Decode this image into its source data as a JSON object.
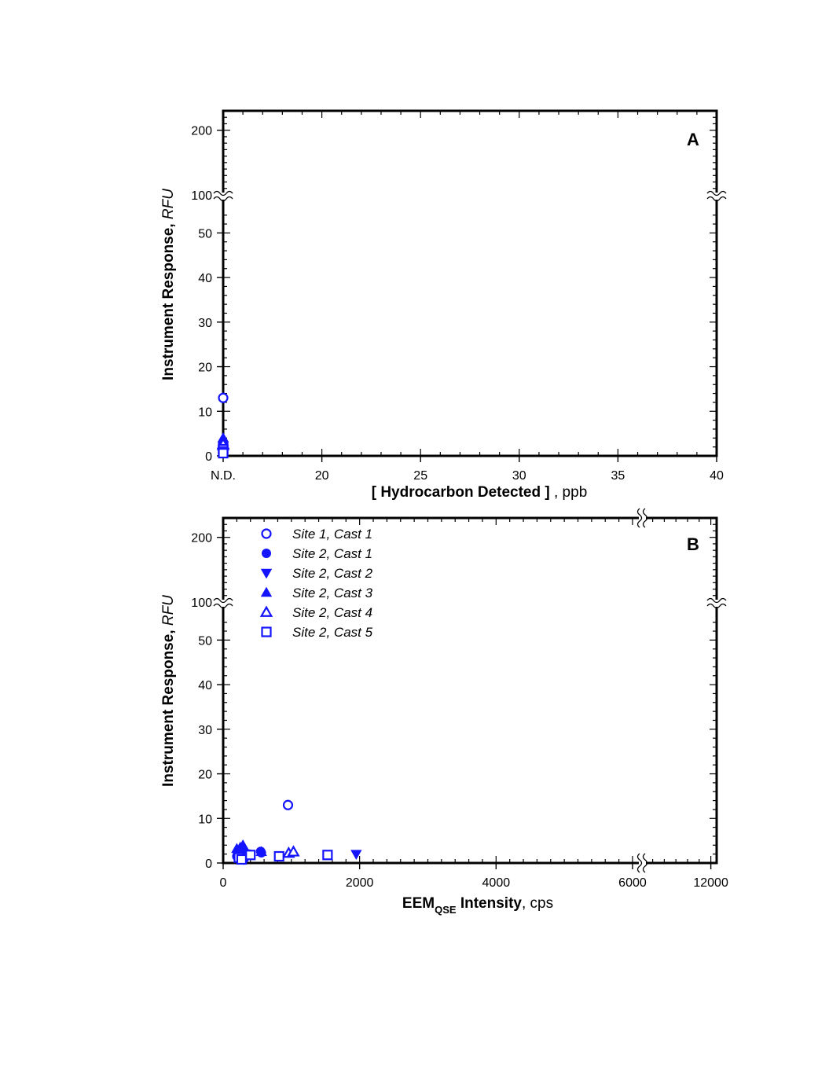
{
  "colors": {
    "marker": "#1414ff",
    "axis": "#000000"
  },
  "chart_data": [
    {
      "type": "scatter",
      "panel_label": "A",
      "title": "",
      "xlabel": {
        "bracket_open": "[ ",
        "main": "Hydrocarbon Detected",
        "bracket_close": " ]",
        "unit": " , ppb"
      },
      "ylabel": {
        "main": "Instrument Response, ",
        "unit": "RFU"
      },
      "x_axis": {
        "range": [
          15,
          40
        ],
        "break_on_axis": false,
        "ticks": [
          {
            "value": 15,
            "label": "N.D."
          },
          {
            "value": 20,
            "label": "20"
          },
          {
            "value": 25,
            "label": "25"
          },
          {
            "value": 30,
            "label": "30"
          },
          {
            "value": 35,
            "label": "35"
          },
          {
            "value": 40,
            "label": "40"
          }
        ]
      },
      "y_axis": {
        "segments": [
          {
            "range": [
              0,
              55
            ]
          },
          {
            "range": [
              100,
              230
            ]
          }
        ],
        "axis_break_between": [
          55,
          100
        ],
        "ticks": [
          {
            "value": 0,
            "label": "0"
          },
          {
            "value": 10,
            "label": "10"
          },
          {
            "value": 20,
            "label": "20"
          },
          {
            "value": 30,
            "label": "30"
          },
          {
            "value": 40,
            "label": "40"
          },
          {
            "value": 50,
            "label": "50"
          },
          {
            "value": 100,
            "label": "100"
          },
          {
            "value": 200,
            "label": "200"
          }
        ]
      },
      "grid": false,
      "series": [
        {
          "marker": "circle-open",
          "points": [
            [
              15,
              13
            ]
          ]
        },
        {
          "marker": "circle-filled",
          "points": [
            [
              15,
              2.5
            ],
            [
              15,
              2.0
            ],
            [
              15,
              1.8
            ]
          ]
        },
        {
          "marker": "triangle-down-filled",
          "points": [
            [
              15,
              2.2
            ],
            [
              15,
              1.5
            ]
          ]
        },
        {
          "marker": "triangle-up-filled",
          "points": [
            [
              15,
              3.5
            ],
            [
              15,
              4.0
            ],
            [
              15,
              3.0
            ]
          ]
        },
        {
          "marker": "triangle-up-open",
          "points": [
            [
              15,
              2.3
            ],
            [
              15,
              2.6
            ]
          ]
        },
        {
          "marker": "square-open",
          "points": [
            [
              15,
              1.5
            ],
            [
              15,
              1.0
            ],
            [
              15,
              0.6
            ]
          ]
        }
      ]
    },
    {
      "type": "scatter",
      "panel_label": "B",
      "title": "",
      "xlabel": {
        "main": "EEM",
        "sub": "QSE",
        "main2": " Intensity",
        "unit": ", cps"
      },
      "ylabel": {
        "main": "Instrument Response, ",
        "unit": "RFU"
      },
      "x_axis": {
        "segments": [
          {
            "range": [
              0,
              6150
            ]
          },
          {
            "range": [
              6150,
              12500
            ]
          }
        ],
        "break_at": 6150,
        "ticks": [
          {
            "value": 0,
            "label": "0"
          },
          {
            "value": 2000,
            "label": "2000"
          },
          {
            "value": 4000,
            "label": "4000"
          },
          {
            "value": 6000,
            "label": "6000"
          },
          {
            "value": 12000,
            "label": "12000"
          }
        ]
      },
      "y_axis": {
        "segments": [
          {
            "range": [
              0,
              55
            ]
          },
          {
            "range": [
              100,
              230
            ]
          }
        ],
        "axis_break_between": [
          55,
          100
        ],
        "ticks": [
          {
            "value": 0,
            "label": "0"
          },
          {
            "value": 10,
            "label": "10"
          },
          {
            "value": 20,
            "label": "20"
          },
          {
            "value": 30,
            "label": "30"
          },
          {
            "value": 40,
            "label": "40"
          },
          {
            "value": 50,
            "label": "50"
          },
          {
            "value": 100,
            "label": "100"
          },
          {
            "value": 200,
            "label": "200"
          }
        ]
      },
      "grid": false,
      "legend": {
        "placement": "top-left"
      },
      "series": [
        {
          "name": "Site 1, Cast 1",
          "marker": "circle-open",
          "points": [
            [
              950,
              13
            ]
          ]
        },
        {
          "name": "Site 2, Cast 1",
          "marker": "circle-filled",
          "points": [
            [
              200,
              1.5
            ],
            [
              210,
              2.0
            ],
            [
              230,
              2.4
            ],
            [
              250,
              1.2
            ],
            [
              270,
              2.8
            ],
            [
              300,
              1.8
            ],
            [
              330,
              2.2
            ],
            [
              380,
              2.0
            ],
            [
              550,
              2.6
            ],
            [
              560,
              2.3
            ]
          ]
        },
        {
          "name": "Site 2, Cast 2",
          "marker": "triangle-down-filled",
          "points": [
            [
              220,
              1.0
            ],
            [
              260,
              1.5
            ],
            [
              300,
              0.8
            ],
            [
              350,
              1.3
            ],
            [
              1950,
              2.0
            ]
          ]
        },
        {
          "name": "Site 2, Cast 3",
          "marker": "triangle-up-filled",
          "points": [
            [
              200,
              3.2
            ],
            [
              250,
              3.5
            ],
            [
              290,
              4.0
            ],
            [
              320,
              2.8
            ],
            [
              560,
              2.5
            ]
          ]
        },
        {
          "name": "Site 2, Cast 4",
          "marker": "triangle-up-open",
          "points": [
            [
              960,
              2.2
            ],
            [
              1030,
              2.5
            ]
          ]
        },
        {
          "name": "Site 2, Cast 5",
          "marker": "square-open",
          "points": [
            [
              230,
              1.2
            ],
            [
              270,
              0.8
            ],
            [
              400,
              1.8
            ],
            [
              820,
              1.5
            ],
            [
              1530,
              1.8
            ]
          ]
        }
      ]
    }
  ]
}
